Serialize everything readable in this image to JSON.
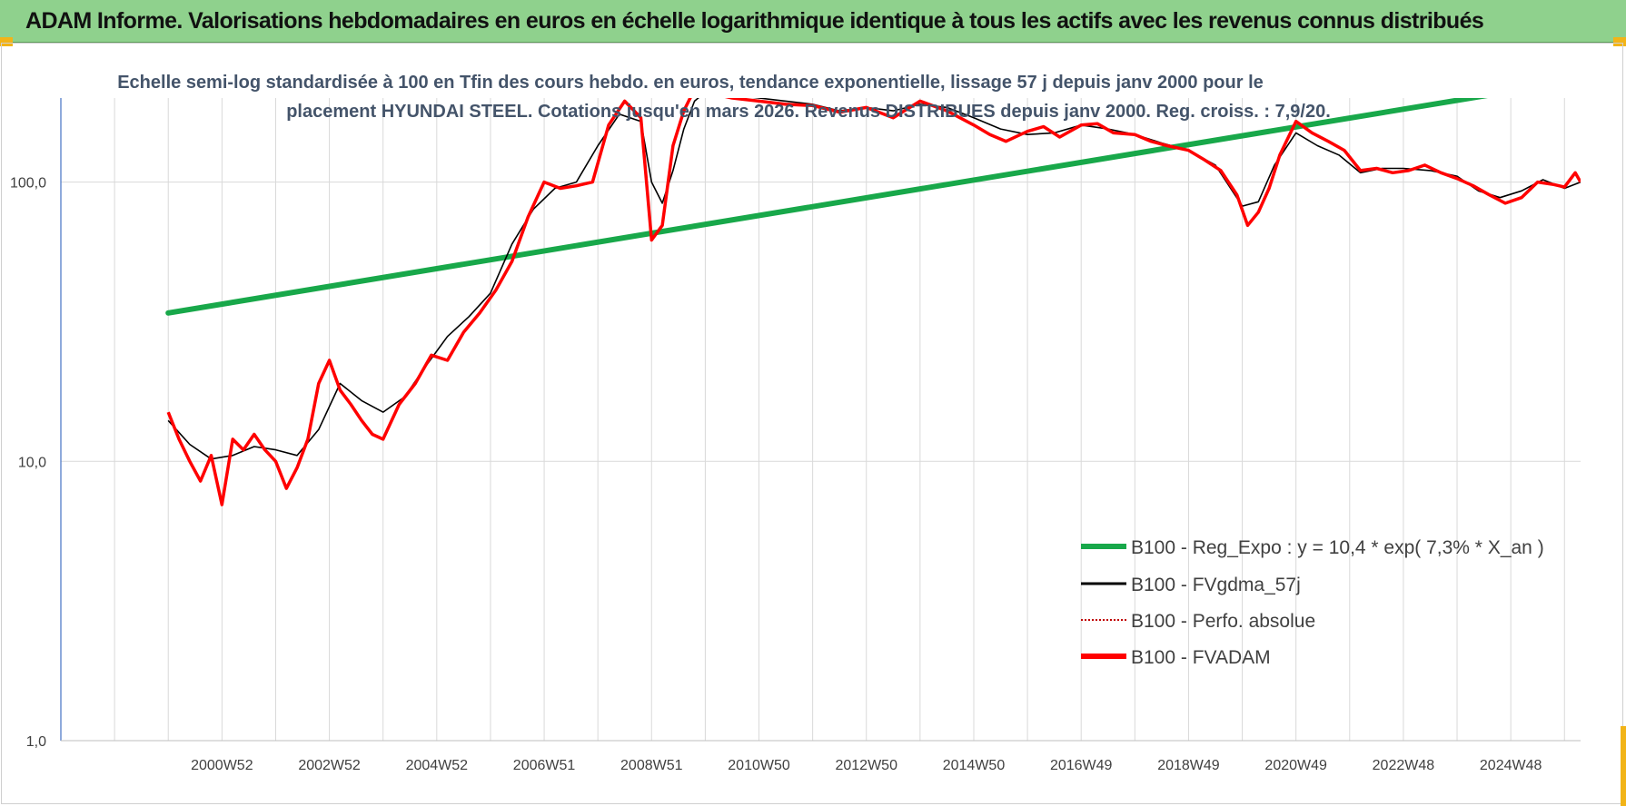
{
  "header": {
    "title": "ADAM Informe. Valorisations hebdomadaires en euros en échelle logarithmique identique à tous les actifs avec les revenus connus distribués"
  },
  "colors": {
    "banner": "#8fd18d",
    "trend": "#18a84a",
    "smooth": "#000000",
    "perf": "#c00000",
    "adam": "#ff0000",
    "grid": "#d9d9d9",
    "axis": "#4472c4"
  },
  "chart_data": {
    "type": "line",
    "title_lines": [
      "Echelle semi-log standardisée à 100 en Tfin des cours hebdo. en euros, tendance exponentielle, lissage 57 j depuis janv 2000 pour le",
      "placement HYUNDAI STEEL. Cotations jusqu'en mars 2026. Revenus DISTRIBUES depuis janv 2000. Reg. croiss. : 7,9/20."
    ],
    "y_scale": "log",
    "ylim": [
      1,
      200
    ],
    "y_ticks": [
      {
        "value": 1,
        "label": "1,0"
      },
      {
        "value": 10,
        "label": "10,0"
      },
      {
        "value": 100,
        "label": "100,0"
      }
    ],
    "x_range": [
      1998.0,
      2026.3
    ],
    "x_ticks": [
      {
        "x": 2001.0,
        "label": "2000W52"
      },
      {
        "x": 2003.0,
        "label": "2002W52"
      },
      {
        "x": 2005.0,
        "label": "2004W52"
      },
      {
        "x": 2007.0,
        "label": "2006W51"
      },
      {
        "x": 2009.0,
        "label": "2008W51"
      },
      {
        "x": 2011.0,
        "label": "2010W50"
      },
      {
        "x": 2013.0,
        "label": "2012W50"
      },
      {
        "x": 2015.0,
        "label": "2014W50"
      },
      {
        "x": 2017.0,
        "label": "2016W49"
      },
      {
        "x": 2019.0,
        "label": "2018W49"
      },
      {
        "x": 2021.0,
        "label": "2020W49"
      },
      {
        "x": 2023.0,
        "label": "2022W48"
      },
      {
        "x": 2025.0,
        "label": "2024W48"
      }
    ],
    "grid": true,
    "legend_position": "bottom-right",
    "series": [
      {
        "name": "B100 - Reg_Expo : y = 10,4 * exp( 7,3% *  X_an )",
        "style": "trend",
        "x": [
          2000.0,
          2024.6
        ],
        "y": [
          34,
          205
        ]
      },
      {
        "name": "B100 - FVgdma_57j",
        "style": "smooth",
        "x": [
          2000.0,
          2000.4,
          2000.8,
          2001.2,
          2001.6,
          2002.0,
          2002.4,
          2002.8,
          2003.2,
          2003.6,
          2004.0,
          2004.4,
          2004.8,
          2005.2,
          2005.6,
          2006.0,
          2006.4,
          2006.8,
          2007.2,
          2007.6,
          2008.0,
          2008.4,
          2008.8,
          2009.0,
          2009.2,
          2009.4,
          2009.6,
          2009.8,
          2010.0,
          2010.5,
          2011.0,
          2011.5,
          2012.0,
          2012.5,
          2013.0,
          2013.5,
          2014.0,
          2014.5,
          2015.0,
          2015.5,
          2016.0,
          2016.5,
          2017.0,
          2017.5,
          2018.0,
          2018.5,
          2019.0,
          2019.5,
          2020.0,
          2020.3,
          2020.6,
          2021.0,
          2021.4,
          2021.8,
          2022.2,
          2022.6,
          2023.0,
          2023.5,
          2024.0,
          2024.4,
          2024.8,
          2025.2,
          2025.6,
          2026.0,
          2026.3
        ],
        "y": [
          14,
          11.5,
          10.2,
          10.5,
          11.3,
          11,
          10.5,
          13,
          19,
          16.5,
          15,
          17,
          22,
          28,
          33,
          40,
          60,
          80,
          95,
          100,
          135,
          175,
          165,
          100,
          84,
          110,
          155,
          195,
          210,
          205,
          200,
          195,
          190,
          180,
          185,
          180,
          190,
          185,
          170,
          155,
          148,
          150,
          160,
          155,
          148,
          138,
          130,
          115,
          82,
          85,
          115,
          150,
          135,
          125,
          108,
          112,
          112,
          110,
          105,
          93,
          88,
          93,
          102,
          95,
          100
        ]
      },
      {
        "name": "B100 - Perfo. absolue",
        "style": "perf",
        "x": [],
        "y": []
      },
      {
        "name": "B100 - FVADAM",
        "style": "adam",
        "x": [
          2000.0,
          2000.2,
          2000.4,
          2000.6,
          2000.8,
          2001.0,
          2001.2,
          2001.4,
          2001.6,
          2001.8,
          2002.0,
          2002.2,
          2002.4,
          2002.6,
          2002.8,
          2003.0,
          2003.2,
          2003.4,
          2003.6,
          2003.8,
          2004.0,
          2004.3,
          2004.6,
          2004.9,
          2005.2,
          2005.5,
          2005.8,
          2006.1,
          2006.4,
          2006.7,
          2007.0,
          2007.3,
          2007.6,
          2007.9,
          2008.2,
          2008.5,
          2008.8,
          2009.0,
          2009.2,
          2009.4,
          2009.6,
          2009.8,
          2010.0,
          2010.5,
          2011.0,
          2011.5,
          2012.0,
          2012.5,
          2013.0,
          2013.5,
          2014.0,
          2014.5,
          2015.0,
          2015.3,
          2015.6,
          2016.0,
          2016.3,
          2016.6,
          2017.0,
          2017.3,
          2017.6,
          2018.0,
          2018.3,
          2018.6,
          2019.0,
          2019.3,
          2019.6,
          2019.9,
          2020.1,
          2020.3,
          2020.5,
          2020.7,
          2021.0,
          2021.3,
          2021.6,
          2021.9,
          2022.2,
          2022.5,
          2022.8,
          2023.1,
          2023.4,
          2023.7,
          2024.0,
          2024.3,
          2024.6,
          2024.9,
          2025.2,
          2025.5,
          2025.8,
          2026.0,
          2026.2,
          2026.3
        ],
        "y": [
          15,
          12,
          10,
          8.5,
          10.5,
          7,
          12,
          11,
          12.5,
          11,
          10,
          8,
          9.5,
          12,
          19,
          23,
          18,
          16,
          14,
          12.5,
          12,
          16,
          19,
          24,
          23,
          29,
          34,
          41,
          52,
          75,
          100,
          95,
          97,
          100,
          160,
          195,
          170,
          62,
          70,
          135,
          180,
          215,
          210,
          200,
          195,
          190,
          188,
          178,
          185,
          170,
          195,
          180,
          160,
          148,
          140,
          152,
          158,
          145,
          160,
          162,
          150,
          148,
          140,
          135,
          130,
          120,
          110,
          90,
          70,
          78,
          95,
          125,
          165,
          150,
          140,
          130,
          110,
          112,
          108,
          110,
          115,
          108,
          103,
          97,
          90,
          84,
          88,
          100,
          98,
          96,
          108,
          100
        ]
      }
    ]
  }
}
